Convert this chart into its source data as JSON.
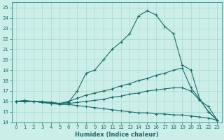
{
  "xlabel": "Humidex (Indice chaleur)",
  "bg_color": "#cceee8",
  "grid_color": "#aad8d2",
  "line_color": "#1a6b6b",
  "tick_color": "#1a6b6b",
  "xlim": [
    -0.5,
    23.5
  ],
  "ylim": [
    14,
    25.5
  ],
  "yticks": [
    14,
    15,
    16,
    17,
    18,
    19,
    20,
    21,
    22,
    23,
    24,
    25
  ],
  "xticks": [
    0,
    1,
    2,
    3,
    4,
    5,
    6,
    7,
    8,
    9,
    10,
    11,
    12,
    13,
    14,
    15,
    16,
    17,
    18,
    19,
    20,
    21,
    22,
    23
  ],
  "line1_x": [
    0,
    1,
    2,
    3,
    4,
    5,
    6,
    7,
    8,
    9,
    10,
    11,
    12,
    13,
    14,
    15,
    16,
    17,
    18,
    19,
    20,
    21,
    22,
    23
  ],
  "line1_y": [
    16.0,
    16.1,
    16.0,
    15.9,
    15.8,
    15.8,
    15.9,
    17.0,
    18.7,
    19.0,
    20.0,
    21.0,
    21.7,
    22.5,
    24.2,
    24.7,
    24.3,
    23.2,
    22.5,
    19.5,
    19.0,
    16.2,
    15.0,
    14.2
  ],
  "line2_x": [
    0,
    1,
    2,
    3,
    4,
    5,
    6,
    7,
    8,
    9,
    10,
    11,
    12,
    13,
    14,
    15,
    16,
    17,
    18,
    19,
    20,
    21,
    22,
    23
  ],
  "line2_y": [
    16.0,
    16.0,
    16.0,
    15.9,
    15.9,
    15.8,
    16.0,
    16.3,
    16.6,
    16.8,
    17.0,
    17.2,
    17.5,
    17.7,
    18.0,
    18.2,
    18.5,
    18.7,
    19.0,
    19.2,
    17.3,
    16.2,
    15.0,
    14.2
  ],
  "line3_x": [
    0,
    1,
    2,
    3,
    4,
    5,
    6,
    7,
    8,
    9,
    10,
    11,
    12,
    13,
    14,
    15,
    16,
    17,
    18,
    19,
    20,
    21,
    22,
    23
  ],
  "line3_y": [
    16.0,
    16.0,
    16.0,
    16.0,
    15.9,
    15.8,
    15.8,
    15.9,
    16.0,
    16.1,
    16.2,
    16.4,
    16.5,
    16.7,
    16.8,
    17.0,
    17.1,
    17.2,
    17.3,
    17.3,
    17.0,
    16.1,
    15.5,
    14.2
  ],
  "line4_x": [
    0,
    1,
    2,
    3,
    4,
    5,
    6,
    7,
    8,
    9,
    10,
    11,
    12,
    13,
    14,
    15,
    16,
    17,
    18,
    19,
    20,
    21,
    22,
    23
  ],
  "line4_y": [
    16.0,
    16.0,
    16.0,
    15.9,
    15.8,
    15.7,
    15.7,
    15.6,
    15.5,
    15.4,
    15.3,
    15.2,
    15.1,
    15.0,
    14.9,
    14.9,
    14.8,
    14.8,
    14.7,
    14.7,
    14.6,
    14.5,
    14.4,
    14.2
  ],
  "xlabel_fontsize": 6,
  "tick_fontsize": 5,
  "linewidth": 0.8,
  "markersize": 2.5
}
